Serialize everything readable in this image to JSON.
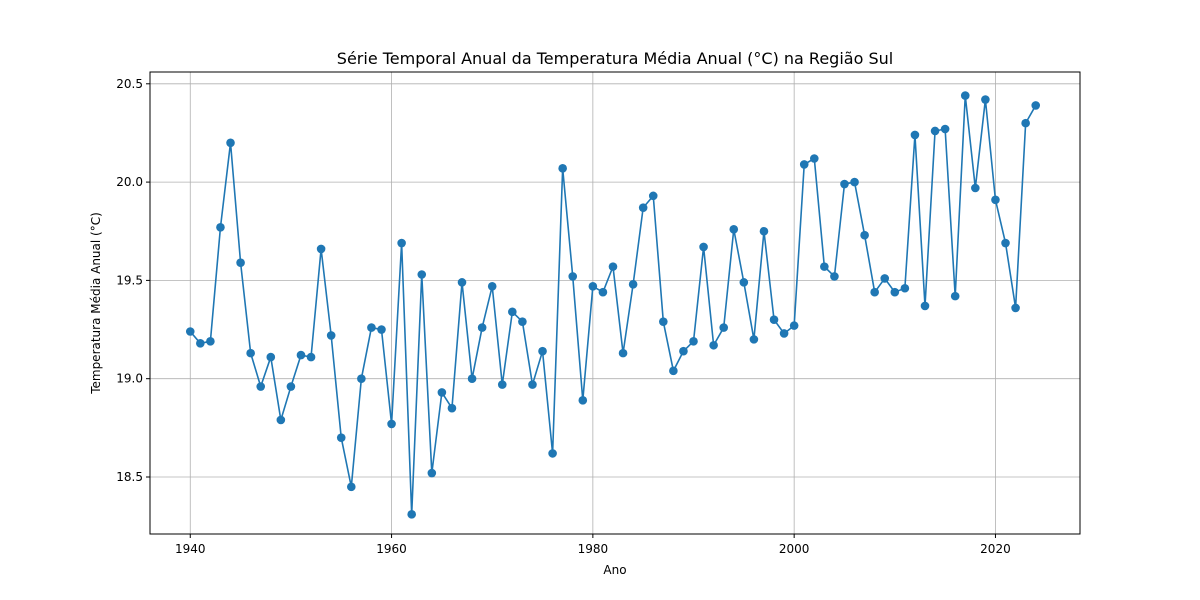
{
  "chart_data": {
    "type": "line",
    "title": "Série Temporal Anual da Temperatura Média Anual (°C) na Região Sul",
    "xlabel": "Ano",
    "ylabel": "Temperatura Média Anual (°C)",
    "xlim": [
      1936,
      2028.4
    ],
    "ylim": [
      18.21,
      20.56
    ],
    "xticks": [
      1940,
      1960,
      1980,
      2000,
      2020
    ],
    "yticks": [
      18.5,
      19.0,
      19.5,
      20.0,
      20.5
    ],
    "xtick_labels": [
      "1940",
      "1960",
      "1980",
      "2000",
      "2020"
    ],
    "ytick_labels": [
      "18.5",
      "19.0",
      "19.5",
      "20.0",
      "20.5"
    ],
    "grid": true,
    "marker": "circle",
    "color": "#1f77b4",
    "series": [
      {
        "x": [
          1940,
          1941,
          1942,
          1943,
          1944,
          1945,
          1946,
          1947,
          1948,
          1949,
          1950,
          1951,
          1952,
          1953,
          1954,
          1955,
          1956,
          1957,
          1958,
          1959,
          1960,
          1961,
          1962,
          1963,
          1964,
          1965,
          1966,
          1967,
          1968,
          1969,
          1970,
          1971,
          1972,
          1973,
          1974,
          1975,
          1976,
          1977,
          1978,
          1979,
          1980,
          1981,
          1982,
          1983,
          1984,
          1985,
          1986,
          1987,
          1988,
          1989,
          1990,
          1991,
          1992,
          1993,
          1994,
          1995,
          1996,
          1997,
          1998,
          1999,
          2000,
          2001,
          2002,
          2003,
          2004,
          2005,
          2006,
          2007,
          2008,
          2009,
          2010,
          2011,
          2012,
          2013,
          2014,
          2015,
          2016,
          2017,
          2018,
          2019,
          2020,
          2021,
          2022,
          2023,
          2024
        ],
        "y": [
          19.24,
          19.18,
          19.19,
          19.77,
          20.2,
          19.59,
          19.13,
          18.96,
          19.11,
          18.79,
          18.96,
          19.12,
          19.11,
          19.66,
          19.22,
          18.7,
          18.45,
          19.0,
          19.26,
          19.25,
          18.77,
          19.69,
          18.31,
          19.53,
          18.52,
          18.93,
          18.85,
          19.49,
          19.0,
          19.26,
          19.47,
          18.97,
          19.34,
          19.29,
          18.97,
          19.14,
          18.62,
          20.07,
          19.52,
          18.89,
          19.47,
          19.44,
          19.57,
          19.13,
          19.48,
          19.87,
          19.93,
          19.29,
          19.04,
          19.14,
          19.19,
          19.67,
          19.17,
          19.26,
          19.76,
          19.49,
          19.2,
          19.75,
          19.3,
          19.23,
          19.27,
          20.09,
          20.12,
          19.57,
          19.52,
          19.99,
          20.0,
          19.73,
          19.44,
          19.51,
          19.44,
          19.46,
          20.24,
          19.37,
          20.26,
          20.27,
          19.42,
          20.44,
          19.97,
          20.42,
          19.91,
          19.69,
          19.36,
          20.3,
          20.39
        ]
      }
    ]
  }
}
